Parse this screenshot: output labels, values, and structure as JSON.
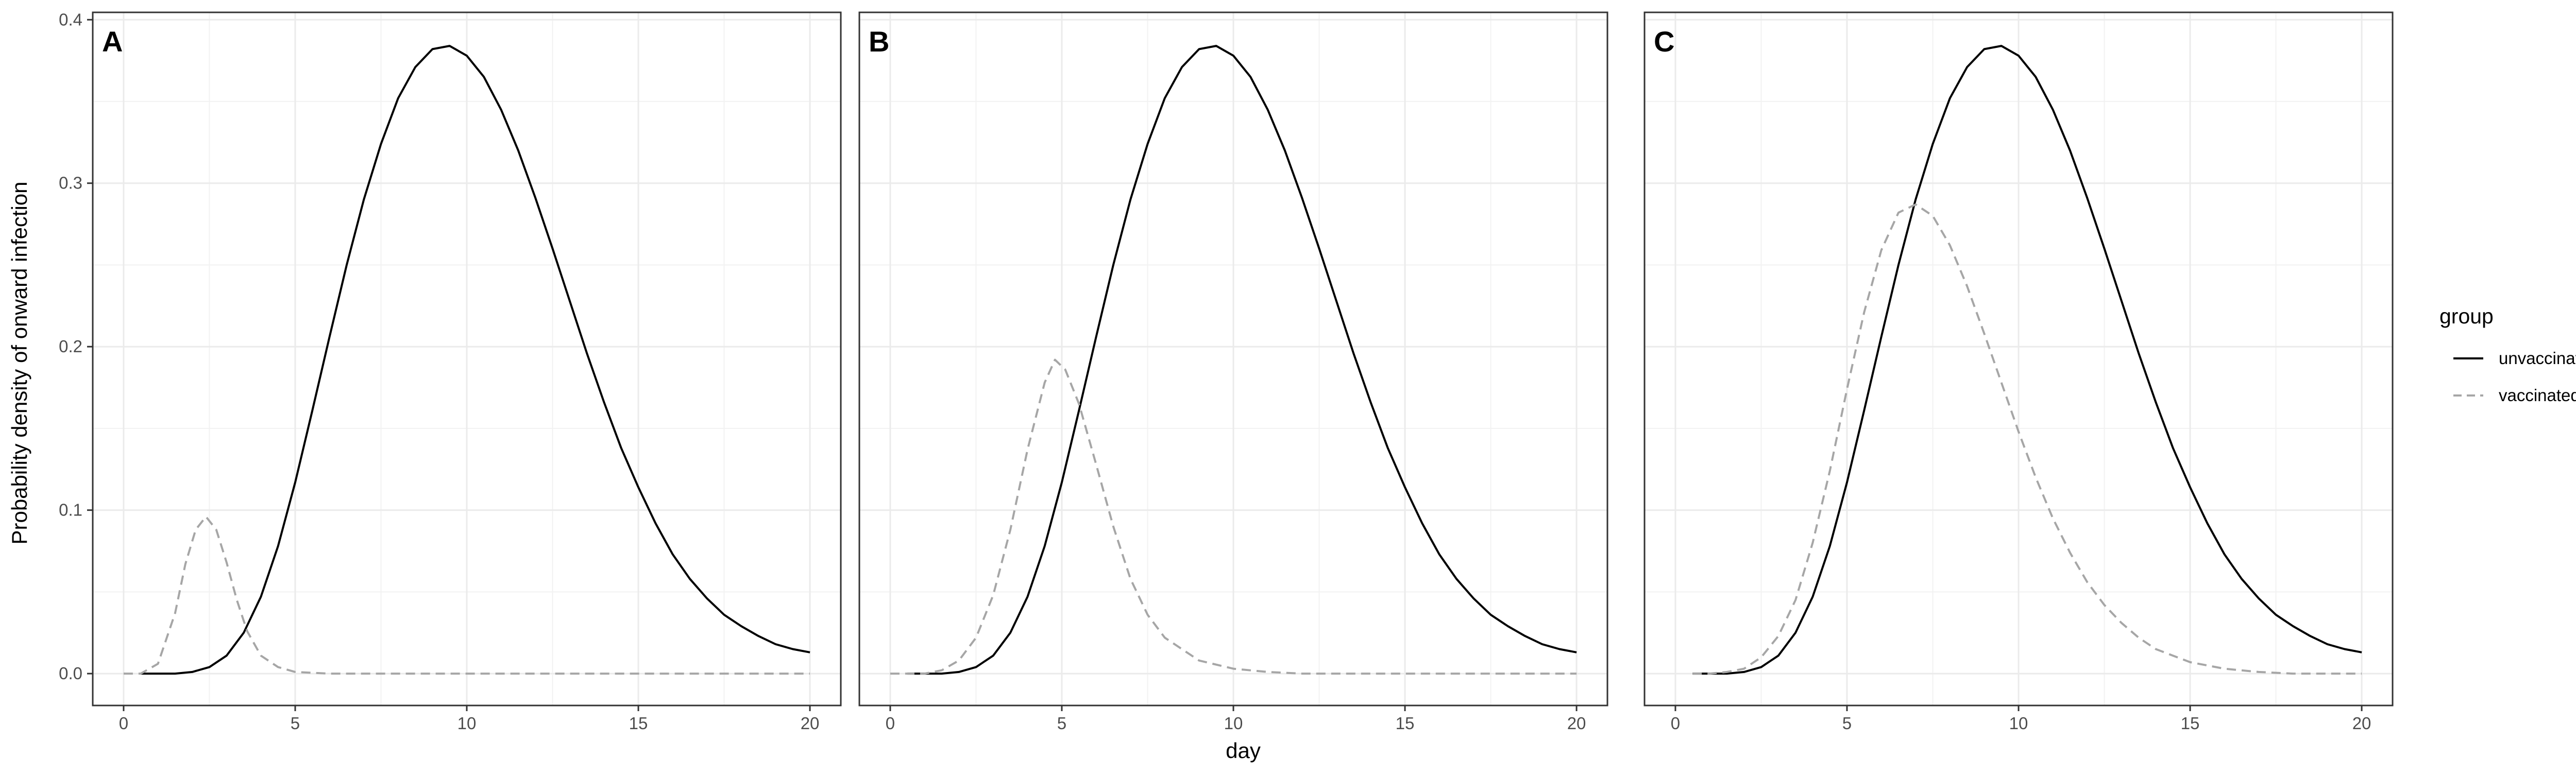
{
  "chart_data": {
    "type": "line",
    "xlabel": "day",
    "ylabel": "Probability density of onward infection",
    "xlim": [
      -0.9,
      20.9
    ],
    "ylim": [
      -0.0195,
      0.4045
    ],
    "x_ticks": [
      0,
      5,
      10,
      15,
      20
    ],
    "x_tick_labels": [
      "0",
      "5",
      "10",
      "15",
      "20"
    ],
    "y_ticks": [
      0.0,
      0.1,
      0.2,
      0.3,
      0.4
    ],
    "y_tick_labels": [
      "0.0",
      "0.1",
      "0.2",
      "0.3",
      "0.4"
    ],
    "grid": true,
    "legend": {
      "title": "group",
      "position": "right",
      "entries": [
        {
          "name": "unvaccinated",
          "color": "#000000",
          "style": "solid"
        },
        {
          "name": "vaccinated",
          "color": "#a6a6a6",
          "style": "dashed"
        }
      ]
    },
    "panels": [
      {
        "tag": "A",
        "series": [
          {
            "name": "unvaccinated",
            "x": [
              0.5,
              1,
              1.5,
              2,
              2.5,
              3,
              3.5,
              4,
              4.5,
              5,
              5.5,
              6,
              6.5,
              7,
              7.5,
              8,
              8.5,
              9,
              9.5,
              10,
              10.5,
              11,
              11.5,
              12,
              12.5,
              13,
              13.5,
              14,
              14.5,
              15,
              15.5,
              16,
              16.5,
              17,
              17.5,
              18,
              18.5,
              19,
              19.5,
              20
            ],
            "values": [
              0.0,
              0.0,
              0.0,
              0.001,
              0.004,
              0.011,
              0.025,
              0.047,
              0.078,
              0.117,
              0.161,
              0.206,
              0.25,
              0.29,
              0.324,
              0.352,
              0.371,
              0.382,
              0.384,
              0.378,
              0.365,
              0.345,
              0.32,
              0.291,
              0.26,
              0.228,
              0.196,
              0.166,
              0.138,
              0.114,
              0.092,
              0.073,
              0.058,
              0.046,
              0.036,
              0.029,
              0.023,
              0.018,
              0.015,
              0.013
            ]
          },
          {
            "name": "vaccinated",
            "x": [
              0,
              0.5,
              1,
              1.5,
              1.8,
              2.1,
              2.4,
              2.7,
              3,
              3.3,
              3.6,
              4,
              4.5,
              5,
              6,
              8,
              10,
              15,
              20
            ],
            "values": [
              0.0,
              0.0,
              0.006,
              0.037,
              0.067,
              0.088,
              0.096,
              0.088,
              0.068,
              0.045,
              0.026,
              0.011,
              0.004,
              0.001,
              0.0,
              0.0,
              0.0,
              0.0,
              0.0
            ]
          }
        ]
      },
      {
        "tag": "B",
        "series": [
          {
            "name": "unvaccinated",
            "x": [
              0.5,
              1,
              1.5,
              2,
              2.5,
              3,
              3.5,
              4,
              4.5,
              5,
              5.5,
              6,
              6.5,
              7,
              7.5,
              8,
              8.5,
              9,
              9.5,
              10,
              10.5,
              11,
              11.5,
              12,
              12.5,
              13,
              13.5,
              14,
              14.5,
              15,
              15.5,
              16,
              16.5,
              17,
              17.5,
              18,
              18.5,
              19,
              19.5,
              20
            ],
            "values": [
              0.0,
              0.0,
              0.0,
              0.001,
              0.004,
              0.011,
              0.025,
              0.047,
              0.078,
              0.117,
              0.161,
              0.206,
              0.25,
              0.29,
              0.324,
              0.352,
              0.371,
              0.382,
              0.384,
              0.378,
              0.365,
              0.345,
              0.32,
              0.291,
              0.26,
              0.228,
              0.196,
              0.166,
              0.138,
              0.114,
              0.092,
              0.073,
              0.058,
              0.046,
              0.036,
              0.029,
              0.023,
              0.018,
              0.015,
              0.013
            ]
          },
          {
            "name": "vaccinated",
            "x": [
              0,
              1,
              1.5,
              2,
              2.5,
              3,
              3.5,
              4,
              4.5,
              4.8,
              5.1,
              5.5,
              6,
              6.5,
              7,
              7.5,
              8,
              9,
              10,
              11,
              12,
              14,
              16,
              20
            ],
            "values": [
              0.0,
              0.0,
              0.002,
              0.008,
              0.022,
              0.048,
              0.088,
              0.137,
              0.178,
              0.192,
              0.186,
              0.165,
              0.128,
              0.09,
              0.058,
              0.036,
              0.022,
              0.008,
              0.003,
              0.001,
              0.0,
              0.0,
              0.0,
              0.0
            ]
          }
        ]
      },
      {
        "tag": "C",
        "series": [
          {
            "name": "unvaccinated",
            "x": [
              0.5,
              1,
              1.5,
              2,
              2.5,
              3,
              3.5,
              4,
              4.5,
              5,
              5.5,
              6,
              6.5,
              7,
              7.5,
              8,
              8.5,
              9,
              9.5,
              10,
              10.5,
              11,
              11.5,
              12,
              12.5,
              13,
              13.5,
              14,
              14.5,
              15,
              15.5,
              16,
              16.5,
              17,
              17.5,
              18,
              18.5,
              19,
              19.5,
              20
            ],
            "values": [
              0.0,
              0.0,
              0.0,
              0.001,
              0.004,
              0.011,
              0.025,
              0.047,
              0.078,
              0.117,
              0.161,
              0.206,
              0.25,
              0.29,
              0.324,
              0.352,
              0.371,
              0.382,
              0.384,
              0.378,
              0.365,
              0.345,
              0.32,
              0.291,
              0.26,
              0.228,
              0.196,
              0.166,
              0.138,
              0.114,
              0.092,
              0.073,
              0.058,
              0.046,
              0.036,
              0.029,
              0.023,
              0.018,
              0.015,
              0.013
            ]
          },
          {
            "name": "vaccinated",
            "x": [
              0.5,
              1,
              1.5,
              2,
              2.5,
              3,
              3.5,
              4,
              4.5,
              5,
              5.5,
              6,
              6.5,
              7,
              7.5,
              8,
              8.5,
              9,
              9.5,
              10,
              10.5,
              11,
              11.5,
              12,
              12.5,
              13,
              13.5,
              14,
              14.5,
              15,
              16,
              17,
              18,
              19,
              20
            ],
            "values": [
              0.0,
              0.0,
              0.001,
              0.003,
              0.01,
              0.023,
              0.045,
              0.08,
              0.124,
              0.174,
              0.221,
              0.259,
              0.282,
              0.287,
              0.28,
              0.262,
              0.237,
              0.208,
              0.178,
              0.148,
              0.12,
              0.095,
              0.074,
              0.056,
              0.042,
              0.031,
              0.022,
              0.015,
              0.011,
              0.007,
              0.003,
              0.001,
              0.0,
              0.0,
              0.0
            ]
          }
        ]
      }
    ]
  }
}
